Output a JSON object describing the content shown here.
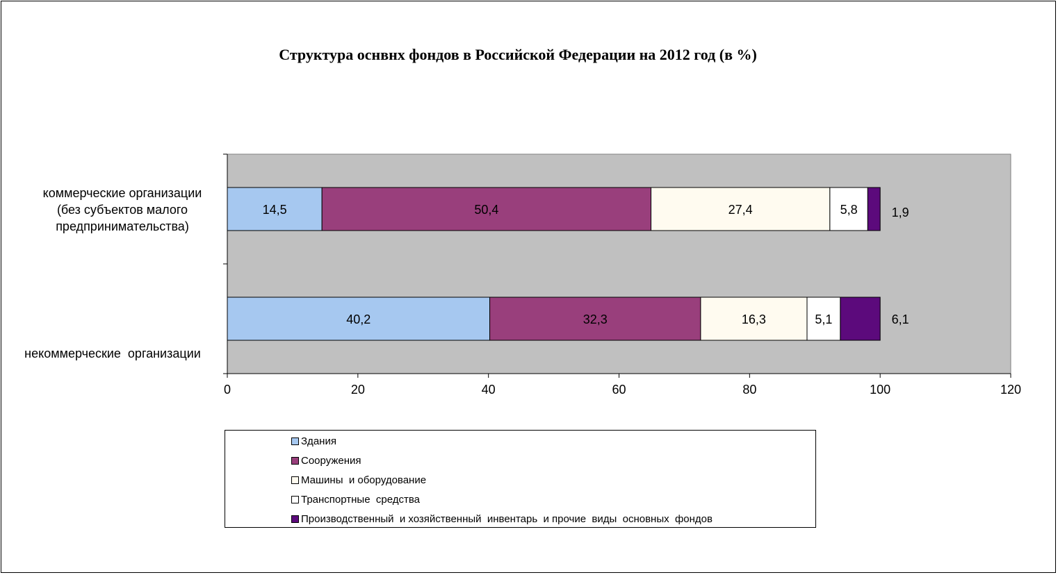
{
  "chart_data": {
    "type": "bar",
    "orientation": "horizontal",
    "stacked": true,
    "title": "Структура оснвнх фондов в Российской Федерации на 2012 год (в %)",
    "categories": [
      "коммерческие организации (без субъектов малого предпринимательства)",
      "некоммерческие организации"
    ],
    "category_lines": [
      [
        "коммерческие организации",
        "(без субъектов малого",
        "предпринимательства)"
      ],
      [
        "некоммерческие  организации"
      ]
    ],
    "series": [
      {
        "name": "Здания",
        "values": [
          14.5,
          40.2
        ],
        "labels": [
          "14,5",
          "40,2"
        ],
        "color": "#a6c8f0"
      },
      {
        "name": "Сооружения",
        "values": [
          50.4,
          32.3
        ],
        "labels": [
          "50,4",
          "32,3"
        ],
        "color": "#993f7c"
      },
      {
        "name": "Машины  и оборудование",
        "values": [
          27.4,
          16.3
        ],
        "labels": [
          "27,4",
          "16,3"
        ],
        "color": "#fffbf0"
      },
      {
        "name": "Транспортные  средства",
        "values": [
          5.8,
          5.1
        ],
        "labels": [
          "5,8",
          "5,1"
        ],
        "color": "#ffffff"
      },
      {
        "name": "Производственный  и хозяйственный  инвентарь  и прочие  виды  основных  фондов",
        "values": [
          1.9,
          6.1
        ],
        "labels": [
          "1,9",
          "6,1"
        ],
        "color": "#5c0a7c"
      }
    ],
    "x_ticks": [
      0,
      20,
      40,
      60,
      80,
      100,
      120
    ],
    "xlim": [
      0,
      120
    ],
    "plot_background": "#c0c0c0",
    "grid": false,
    "legend_position": "bottom"
  }
}
